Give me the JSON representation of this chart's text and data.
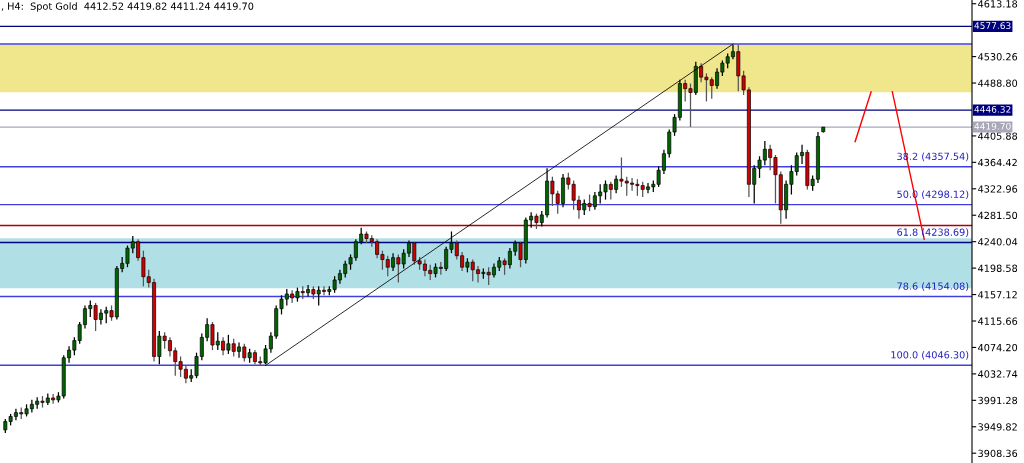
{
  "chart_data": {
    "type": "candlestick",
    "title": ", H4:  Spot Gold  4412.52 4419.82 4411.24 4419.70",
    "categories": [
      null,
      null,
      null,
      null,
      null,
      null,
      null,
      null,
      null,
      null,
      null,
      null,
      null,
      null,
      null,
      null,
      null,
      null,
      null,
      null,
      null,
      null,
      null,
      null,
      null,
      null,
      null,
      null,
      null,
      null,
      null,
      null,
      null,
      null,
      null,
      null,
      null,
      null,
      null,
      null,
      null,
      null,
      null,
      null,
      null,
      null,
      null,
      null,
      null,
      null,
      null,
      null,
      null,
      null,
      null,
      null,
      null,
      null,
      null,
      null,
      null,
      null,
      null,
      null,
      null,
      null,
      null,
      null,
      null,
      null,
      null,
      null,
      null,
      null,
      null,
      null,
      null,
      null,
      null,
      null,
      null,
      null,
      null,
      null,
      null,
      null,
      null,
      null,
      null,
      null,
      null,
      null,
      null,
      null,
      null,
      null,
      null,
      null,
      null,
      null,
      null,
      null,
      null,
      null,
      null,
      null,
      null,
      null,
      null,
      null,
      null,
      null,
      null,
      null,
      null,
      null,
      null,
      null,
      null,
      null,
      null,
      null,
      null,
      null,
      null,
      null,
      null,
      null,
      null,
      null,
      null,
      null,
      null,
      null,
      null,
      null,
      null,
      null,
      null,
      null,
      null,
      null,
      null,
      null,
      null,
      null,
      null,
      null,
      null,
      null,
      null,
      null,
      null,
      null,
      null,
      null,
      null,
      null,
      null,
      null,
      null,
      null,
      null,
      null,
      null,
      null,
      null,
      null,
      null,
      null,
      null,
      null,
      null,
      null,
      null,
      null,
      null,
      null,
      null,
      null,
      null,
      null,
      null
    ],
    "ohlc": [
      [
        3945,
        3962,
        3940,
        3958
      ],
      [
        3958,
        3970,
        3952,
        3966
      ],
      [
        3966,
        3978,
        3960,
        3972
      ],
      [
        3972,
        3980,
        3962,
        3970
      ],
      [
        3970,
        3985,
        3966,
        3978
      ],
      [
        3978,
        3992,
        3972,
        3985
      ],
      [
        3985,
        3996,
        3978,
        3990
      ],
      [
        3990,
        3998,
        3980,
        3988
      ],
      [
        3988,
        4002,
        3984,
        3995
      ],
      [
        3995,
        4001,
        3986,
        3992
      ],
      [
        3992,
        4004,
        3988,
        3998
      ],
      [
        3998,
        4062,
        3994,
        4058
      ],
      [
        4058,
        4076,
        4050,
        4070
      ],
      [
        4070,
        4090,
        4062,
        4085
      ],
      [
        4085,
        4114,
        4080,
        4110
      ],
      [
        4110,
        4140,
        4104,
        4135
      ],
      [
        4135,
        4148,
        4122,
        4140
      ],
      [
        4140,
        4144,
        4100,
        4118
      ],
      [
        4118,
        4134,
        4110,
        4128
      ],
      [
        4128,
        4138,
        4112,
        4132
      ],
      [
        4132,
        4140,
        4116,
        4122
      ],
      [
        4122,
        4202,
        4118,
        4198
      ],
      [
        4198,
        4216,
        4192,
        4206
      ],
      [
        4206,
        4234,
        4200,
        4230
      ],
      [
        4230,
        4249,
        4222,
        4240
      ],
      [
        4240,
        4244,
        4210,
        4215
      ],
      [
        4215,
        4226,
        4170,
        4185
      ],
      [
        4185,
        4196,
        4168,
        4176
      ],
      [
        4176,
        4182,
        4052,
        4060
      ],
      [
        4060,
        4100,
        4048,
        4092
      ],
      [
        4092,
        4098,
        4072,
        4085
      ],
      [
        4085,
        4090,
        4060,
        4069
      ],
      [
        4069,
        4074,
        4030,
        4052
      ],
      [
        4052,
        4060,
        4028,
        4040
      ],
      [
        4040,
        4046,
        4018,
        4026
      ],
      [
        4026,
        4040,
        4020,
        4030
      ],
      [
        4030,
        4066,
        4026,
        4060
      ],
      [
        4060,
        4096,
        4054,
        4090
      ],
      [
        4090,
        4120,
        4084,
        4110
      ],
      [
        4110,
        4114,
        4070,
        4078
      ],
      [
        4078,
        4098,
        4070,
        4084
      ],
      [
        4084,
        4090,
        4062,
        4070
      ],
      [
        4070,
        4094,
        4064,
        4080
      ],
      [
        4080,
        4088,
        4060,
        4068
      ],
      [
        4068,
        4082,
        4058,
        4075
      ],
      [
        4075,
        4080,
        4052,
        4058
      ],
      [
        4058,
        4072,
        4050,
        4066
      ],
      [
        4066,
        4070,
        4048,
        4052
      ],
      [
        4052,
        4060,
        4046.3,
        4050
      ],
      [
        4050,
        4078,
        4048,
        4072
      ],
      [
        4072,
        4098,
        4066,
        4092
      ],
      [
        4092,
        4140,
        4088,
        4135
      ],
      [
        4135,
        4156,
        4126,
        4150
      ],
      [
        4150,
        4166,
        4140,
        4158
      ],
      [
        4158,
        4164,
        4144,
        4152
      ],
      [
        4152,
        4168,
        4146,
        4162
      ],
      [
        4162,
        4170,
        4150,
        4160
      ],
      [
        4160,
        4172,
        4154,
        4165
      ],
      [
        4165,
        4170,
        4150,
        4158
      ],
      [
        4158,
        4170,
        4140,
        4164
      ],
      [
        4164,
        4170,
        4156,
        4162
      ],
      [
        4162,
        4170,
        4156,
        4165
      ],
      [
        4165,
        4186,
        4160,
        4180
      ],
      [
        4180,
        4196,
        4174,
        4190
      ],
      [
        4190,
        4210,
        4184,
        4205
      ],
      [
        4205,
        4220,
        4196,
        4215
      ],
      [
        4215,
        4244,
        4210,
        4240
      ],
      [
        4240,
        4262,
        4236,
        4252
      ],
      [
        4252,
        4256,
        4238,
        4245
      ],
      [
        4245,
        4250,
        4232,
        4240
      ],
      [
        4240,
        4244,
        4214,
        4220
      ],
      [
        4220,
        4226,
        4196,
        4212
      ],
      [
        4212,
        4218,
        4186,
        4200
      ],
      [
        4200,
        4222,
        4194,
        4215
      ],
      [
        4215,
        4220,
        4176,
        4205
      ],
      [
        4205,
        4228,
        4198,
        4222
      ],
      [
        4222,
        4242,
        4216,
        4238
      ],
      [
        4238,
        4240,
        4204,
        4210
      ],
      [
        4210,
        4216,
        4196,
        4205
      ],
      [
        4205,
        4212,
        4186,
        4195
      ],
      [
        4195,
        4204,
        4180,
        4190
      ],
      [
        4190,
        4206,
        4184,
        4200
      ],
      [
        4200,
        4208,
        4188,
        4198
      ],
      [
        4198,
        4232,
        4194,
        4228
      ],
      [
        4228,
        4256,
        4222,
        4238
      ],
      [
        4238,
        4242,
        4212,
        4218
      ],
      [
        4218,
        4224,
        4194,
        4200
      ],
      [
        4200,
        4214,
        4192,
        4208
      ],
      [
        4208,
        4212,
        4178,
        4196
      ],
      [
        4196,
        4202,
        4176,
        4190
      ],
      [
        4190,
        4198,
        4182,
        4192
      ],
      [
        4192,
        4200,
        4172,
        4188
      ],
      [
        4188,
        4206,
        4184,
        4200
      ],
      [
        4200,
        4216,
        4194,
        4210
      ],
      [
        4210,
        4214,
        4188,
        4204
      ],
      [
        4204,
        4230,
        4198,
        4225
      ],
      [
        4225,
        4242,
        4218,
        4238
      ],
      [
        4238,
        4240,
        4200,
        4212
      ],
      [
        4212,
        4278,
        4206,
        4274
      ],
      [
        4274,
        4286,
        4262,
        4280
      ],
      [
        4280,
        4284,
        4260,
        4270
      ],
      [
        4270,
        4288,
        4264,
        4282
      ],
      [
        4282,
        4355,
        4278,
        4335
      ],
      [
        4335,
        4342,
        4296,
        4315
      ],
      [
        4315,
        4320,
        4284,
        4300
      ],
      [
        4300,
        4346,
        4294,
        4340
      ],
      [
        4340,
        4348,
        4322,
        4330
      ],
      [
        4330,
        4336,
        4290,
        4305
      ],
      [
        4305,
        4312,
        4276,
        4290
      ],
      [
        4290,
        4306,
        4282,
        4300
      ],
      [
        4300,
        4314,
        4288,
        4295
      ],
      [
        4295,
        4318,
        4290,
        4312
      ],
      [
        4312,
        4330,
        4300,
        4318
      ],
      [
        4318,
        4336,
        4306,
        4330
      ],
      [
        4330,
        4334,
        4306,
        4322
      ],
      [
        4322,
        4344,
        4316,
        4338
      ],
      [
        4338,
        4372,
        4326,
        4335
      ],
      [
        4335,
        4342,
        4312,
        4332
      ],
      [
        4332,
        4340,
        4320,
        4330
      ],
      [
        4330,
        4338,
        4312,
        4328
      ],
      [
        4328,
        4334,
        4310,
        4322
      ],
      [
        4322,
        4332,
        4316,
        4326
      ],
      [
        4326,
        4336,
        4318,
        4330
      ],
      [
        4330,
        4358,
        4326,
        4352
      ],
      [
        4352,
        4384,
        4346,
        4378
      ],
      [
        4378,
        4416,
        4372,
        4412
      ],
      [
        4412,
        4440,
        4406,
        4435
      ],
      [
        4435,
        4494,
        4430,
        4488
      ],
      [
        4488,
        4494,
        4460,
        4480
      ],
      [
        4480,
        4488,
        4420,
        4474
      ],
      [
        4474,
        4522,
        4470,
        4515
      ],
      [
        4515,
        4520,
        4490,
        4498
      ],
      [
        4498,
        4504,
        4460,
        4494
      ],
      [
        4494,
        4498,
        4464,
        4485
      ],
      [
        4485,
        4512,
        4480,
        4506
      ],
      [
        4506,
        4524,
        4500,
        4520
      ],
      [
        4520,
        4535,
        4512,
        4530
      ],
      [
        4530,
        4549,
        4526,
        4538
      ],
      [
        4538,
        4549,
        4476,
        4500
      ],
      [
        4500,
        4508,
        4470,
        4478
      ],
      [
        4478,
        4482,
        4310,
        4330
      ],
      [
        4330,
        4360,
        4300,
        4355
      ],
      [
        4355,
        4374,
        4340,
        4368
      ],
      [
        4368,
        4398,
        4360,
        4385
      ],
      [
        4385,
        4392,
        4352,
        4372
      ],
      [
        4372,
        4376,
        4300,
        4345
      ],
      [
        4345,
        4350,
        4268,
        4290
      ],
      [
        4290,
        4336,
        4276,
        4330
      ],
      [
        4330,
        4360,
        4314,
        4350
      ],
      [
        4350,
        4380,
        4344,
        4375
      ],
      [
        4375,
        4392,
        4362,
        4380
      ],
      [
        4380,
        4384,
        4322,
        4328
      ],
      [
        4328,
        4344,
        4320,
        4338
      ],
      [
        4338,
        4412,
        4332,
        4405
      ],
      [
        4412.52,
        4419.82,
        4411.24,
        4419.7
      ],
      null,
      null,
      null,
      null,
      null,
      null,
      null,
      null,
      null,
      null,
      null,
      null,
      null,
      null,
      null,
      null,
      null,
      null,
      null,
      null,
      null,
      null,
      null,
      null,
      null,
      null,
      null,
      null
    ],
    "series": [
      {
        "type": "line",
        "values": [
          null,
          null,
          null,
          null,
          null,
          null,
          null,
          null,
          null,
          null,
          null,
          null,
          null,
          null,
          null,
          null,
          null,
          null,
          null,
          null,
          null,
          null,
          null,
          null,
          null,
          null,
          null,
          null,
          null,
          null,
          null,
          null,
          null,
          null,
          null,
          null,
          null,
          null,
          null,
          null,
          null,
          null,
          null,
          null,
          null,
          null,
          null,
          null,
          null,
          4046,
          null,
          null,
          null,
          null,
          null,
          null,
          null,
          null,
          null,
          null,
          null,
          null,
          null,
          null,
          null,
          null,
          null,
          null,
          null,
          null,
          null,
          null,
          null,
          null,
          null,
          null,
          null,
          null,
          null,
          null,
          null,
          null,
          null,
          null,
          null,
          null,
          null,
          null,
          null,
          null,
          null,
          null,
          null,
          null,
          null,
          null,
          null,
          null,
          null,
          null,
          null,
          null,
          null,
          null,
          null,
          null,
          null,
          null,
          null,
          null,
          null,
          null,
          null,
          null,
          null,
          null,
          null,
          null,
          null,
          null,
          null,
          null,
          null,
          null,
          null,
          null,
          null,
          null,
          null,
          null,
          null,
          null,
          null,
          null,
          null,
          null,
          null,
          4550,
          null,
          null,
          null,
          null,
          null,
          null,
          null,
          null,
          null,
          null,
          null,
          null,
          null,
          null,
          null,
          null,
          null,
          null,
          null,
          null,
          null,
          null,
          null,
          null,
          null,
          null,
          null,
          null,
          null,
          null,
          null,
          null,
          null,
          null,
          null,
          null,
          null,
          null,
          null,
          null,
          null,
          null,
          null,
          null,
          null
        ],
        "color": "#000000"
      },
      {
        "type": "line",
        "values": [
          null,
          null,
          null,
          null,
          null,
          null,
          null,
          null,
          null,
          null,
          null,
          null,
          null,
          null,
          null,
          null,
          null,
          null,
          null,
          null,
          null,
          null,
          null,
          null,
          null,
          null,
          null,
          null,
          null,
          null,
          null,
          null,
          null,
          null,
          null,
          null,
          null,
          null,
          null,
          null,
          null,
          null,
          null,
          null,
          null,
          null,
          null,
          null,
          null,
          null,
          null,
          null,
          null,
          null,
          null,
          null,
          null,
          null,
          null,
          null,
          null,
          null,
          null,
          null,
          null,
          null,
          null,
          null,
          null,
          null,
          null,
          null,
          null,
          null,
          null,
          null,
          null,
          null,
          null,
          null,
          null,
          null,
          null,
          null,
          null,
          null,
          null,
          null,
          null,
          null,
          null,
          null,
          null,
          null,
          null,
          null,
          null,
          null,
          null,
          null,
          null,
          null,
          null,
          null,
          null,
          null,
          null,
          null,
          null,
          null,
          null,
          null,
          null,
          null,
          null,
          null,
          null,
          null,
          null,
          null,
          null,
          null,
          null,
          null,
          null,
          null,
          null,
          null,
          null,
          null,
          null,
          null,
          null,
          null,
          null,
          null,
          null,
          null,
          null,
          null,
          null,
          null,
          null,
          null,
          null,
          null,
          null,
          null,
          null,
          null,
          null,
          null,
          null,
          null,
          null,
          null,
          null,
          null,
          null,
          null,
          4397,
          null,
          null,
          4475,
          null,
          null,
          null,
          null,
          null,
          null,
          null,
          null,
          null,
          null,
          null,
          null,
          null,
          null,
          null,
          null,
          null,
          null,
          null
        ],
        "color": "#ff0000"
      },
      {
        "type": "line",
        "values": [
          null,
          null,
          null,
          null,
          null,
          null,
          null,
          null,
          null,
          null,
          null,
          null,
          null,
          null,
          null,
          null,
          null,
          null,
          null,
          null,
          null,
          null,
          null,
          null,
          null,
          null,
          null,
          null,
          null,
          null,
          null,
          null,
          null,
          null,
          null,
          null,
          null,
          null,
          null,
          null,
          null,
          null,
          null,
          null,
          null,
          null,
          null,
          null,
          null,
          null,
          null,
          null,
          null,
          null,
          null,
          null,
          null,
          null,
          null,
          null,
          null,
          null,
          null,
          null,
          null,
          null,
          null,
          null,
          null,
          null,
          null,
          null,
          null,
          null,
          null,
          null,
          null,
          null,
          null,
          null,
          null,
          null,
          null,
          null,
          null,
          null,
          null,
          null,
          null,
          null,
          null,
          null,
          null,
          null,
          null,
          null,
          null,
          null,
          null,
          null,
          null,
          null,
          null,
          null,
          null,
          null,
          null,
          null,
          null,
          null,
          null,
          null,
          null,
          null,
          null,
          null,
          null,
          null,
          null,
          null,
          null,
          null,
          null,
          null,
          null,
          null,
          null,
          null,
          null,
          null,
          null,
          null,
          null,
          null,
          null,
          null,
          null,
          null,
          null,
          null,
          null,
          null,
          null,
          null,
          null,
          null,
          null,
          null,
          null,
          null,
          null,
          null,
          null,
          null,
          null,
          null,
          null,
          null,
          null,
          null,
          null,
          null,
          null,
          null,
          null,
          null,
          null,
          4475,
          null,
          null,
          null,
          null,
          null,
          4244,
          null,
          null,
          null,
          null,
          null,
          null,
          null,
          null,
          null
        ],
        "color": "#ff0000"
      }
    ],
    "ylim": [
      3893,
      4619
    ],
    "yticks": [
      4613.18,
      4530.26,
      {
        "value": 4488.8,
        "label": "4488.80"
      },
      4405.88,
      4364.42,
      4322.96,
      {
        "value": 4281.5,
        "label": "4281.50"
      },
      4240.04,
      4198.58,
      4157.12,
      4115.66,
      {
        "value": 4074.2,
        "label": "4074.20"
      },
      4032.74,
      3991.28,
      3949.82,
      3908.36
    ],
    "tick_labels": "y",
    "ref_lines": [
      {
        "axis": "y",
        "value": 4577.63,
        "label": "4577.63",
        "color": "#00007f"
      },
      {
        "axis": "y",
        "value": 4549.96,
        "color": "#4040e0"
      },
      {
        "axis": "y",
        "value": 4446.32,
        "label": "4446.32",
        "color": "#00007f"
      },
      {
        "axis": "y",
        "value": 4419.7,
        "label": "4419.70",
        "color": "#a8a8b8"
      },
      {
        "axis": "y",
        "value": 4357.54,
        "label": "38.2 (4357.54)",
        "color": "#4040e0"
      },
      {
        "axis": "y",
        "value": 4298.12,
        "label": "50.0 (4298.12)",
        "color": "#4040e0"
      },
      {
        "axis": "y",
        "value": 4265.5,
        "color": "#b00000"
      },
      {
        "axis": "y",
        "value": 4238.69,
        "label": "61.8 (4238.69)",
        "color": "#000080"
      },
      {
        "axis": "y",
        "value": 4154.08,
        "label": "78.6 (4154.08)",
        "color": "#4040e0"
      },
      {
        "axis": "y",
        "value": 4046.3,
        "label": "100.0 (4046.30)",
        "color": "#4040e0"
      }
    ],
    "bands": [
      {
        "axis": "y",
        "from": 4474.5,
        "to": 4549.4,
        "color": "#f0e68c"
      },
      {
        "axis": "y",
        "from": 4167.2,
        "to": 4245.3,
        "color": "#b0e0e6"
      }
    ],
    "grid": false,
    "legend": false
  }
}
